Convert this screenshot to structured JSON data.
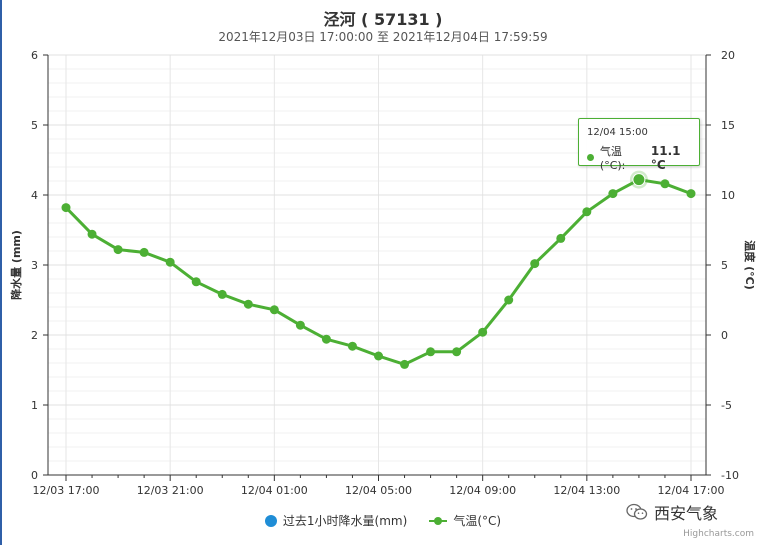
{
  "chart_data": {
    "type": "line",
    "title": "泾河 ( 57131 )",
    "subtitle": "2021年12月03日 17:00:00 至 2021年12月04日 17:59:59",
    "x_tick_labels": [
      "12/03 17:00",
      "12/03 21:00",
      "12/04 01:00",
      "12/04 05:00",
      "12/04 09:00",
      "12/04 13:00",
      "12/04 17:00"
    ],
    "x_categories": [
      "12/03 17:00",
      "12/03 18:00",
      "12/03 19:00",
      "12/03 20:00",
      "12/03 21:00",
      "12/03 22:00",
      "12/03 23:00",
      "12/04 00:00",
      "12/04 01:00",
      "12/04 02:00",
      "12/04 03:00",
      "12/04 04:00",
      "12/04 05:00",
      "12/04 06:00",
      "12/04 07:00",
      "12/04 08:00",
      "12/04 09:00",
      "12/04 10:00",
      "12/04 11:00",
      "12/04 12:00",
      "12/04 13:00",
      "12/04 14:00",
      "12/04 15:00",
      "12/04 16:00",
      "12/04 17:00"
    ],
    "y_left": {
      "label": "降水量 (mm)",
      "range": [
        0,
        6
      ],
      "ticks": [
        "0",
        "1",
        "2",
        "3",
        "4",
        "5",
        "6"
      ]
    },
    "y_right": {
      "label": "温度 (°C)",
      "range": [
        -10,
        20
      ],
      "ticks": [
        "-10",
        "-5",
        "0",
        "5",
        "10",
        "15",
        "20"
      ]
    },
    "series": [
      {
        "name": "过去1小时降水量(mm)",
        "axis": "left",
        "color": "#1f8dd6",
        "values": []
      },
      {
        "name": "气温(°C)",
        "axis": "right",
        "color": "#4caf34",
        "values": [
          9.1,
          7.2,
          6.1,
          5.9,
          5.2,
          3.8,
          2.9,
          2.2,
          1.8,
          0.7,
          -0.3,
          -0.8,
          -1.5,
          -2.1,
          -1.2,
          -1.2,
          0.2,
          2.5,
          5.1,
          6.9,
          8.8,
          10.1,
          11.1,
          10.8,
          10.1
        ]
      }
    ],
    "grid": true,
    "legend": "bottom-center",
    "highlight_index": 22
  },
  "tooltip": {
    "time": "12/04 15:00",
    "series_label": "气温(°C):",
    "value": "11.1 °C"
  },
  "legend_items": [
    "过去1小时降水量(mm)",
    "气温(°C)"
  ],
  "credits": "Highcharts.com",
  "watermark": "西安气象"
}
